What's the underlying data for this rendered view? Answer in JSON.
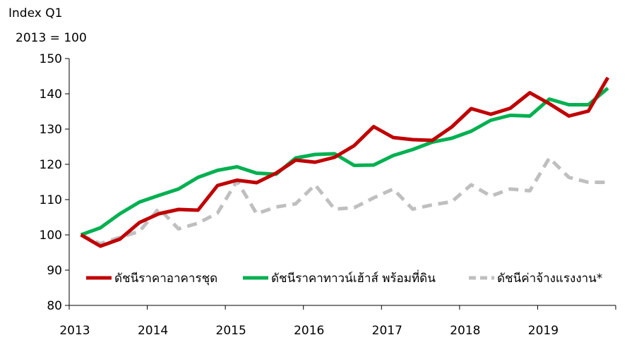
{
  "chart_data": {
    "type": "line",
    "ylabel_lines": [
      "Index Q1",
      "2013 = 100"
    ],
    "ylim": [
      80,
      150
    ],
    "yticks": [
      80,
      90,
      100,
      110,
      120,
      130,
      140,
      150
    ],
    "xlim": [
      2013,
      2020
    ],
    "xticks": [
      2013,
      2014,
      2015,
      2016,
      2017,
      2018,
      2019
    ],
    "grid": false,
    "legend_position": "bottom",
    "x": [
      2013.0,
      2013.25,
      2013.5,
      2013.75,
      2014.0,
      2014.25,
      2014.5,
      2014.75,
      2015.0,
      2015.25,
      2015.5,
      2015.75,
      2016.0,
      2016.25,
      2016.5,
      2016.75,
      2017.0,
      2017.25,
      2017.5,
      2017.75,
      2018.0,
      2018.25,
      2018.5,
      2018.75,
      2019.0,
      2019.25,
      2019.5,
      2019.75
    ],
    "series": [
      {
        "name": "ดัชนีราคาอาคารชุด",
        "color": "#c00000",
        "dash": "solid",
        "values": [
          100,
          96.8,
          98.8,
          103.5,
          106,
          107.2,
          107,
          114,
          115.5,
          114.8,
          117.5,
          121.2,
          120.6,
          122,
          125.3,
          130.7,
          127.6,
          127,
          126.8,
          130.6,
          135.8,
          134.2,
          135.9,
          140.3,
          137.2,
          133.7,
          135.1,
          144.6
        ]
      },
      {
        "name": "ดัชนีราคาทาวน์เฮ้าส์ พร้อมที่ดิน",
        "color": "#00b050",
        "dash": "solid",
        "values": [
          100,
          102,
          106,
          109.3,
          111.2,
          113,
          116.3,
          118.3,
          119.3,
          117.5,
          117.2,
          121.8,
          122.8,
          123,
          119.7,
          119.8,
          122.5,
          124.2,
          126.3,
          127.4,
          129.4,
          132.5,
          133.9,
          133.7,
          138.5,
          136.9,
          136.9,
          141.6
        ]
      },
      {
        "name": "ดัชนีค่าจ้างแรงงาน*",
        "color": "#bfbfbf",
        "dash": "dashed",
        "values": [
          100,
          97.5,
          99.3,
          101,
          107.5,
          101.7,
          103.3,
          106.2,
          115.3,
          106,
          107.9,
          108.8,
          114.2,
          107.3,
          107.7,
          110.5,
          113,
          107.3,
          108.5,
          109.4,
          114.2,
          111,
          113,
          112.5,
          121.8,
          116.3,
          114.9,
          114.9
        ]
      }
    ]
  }
}
